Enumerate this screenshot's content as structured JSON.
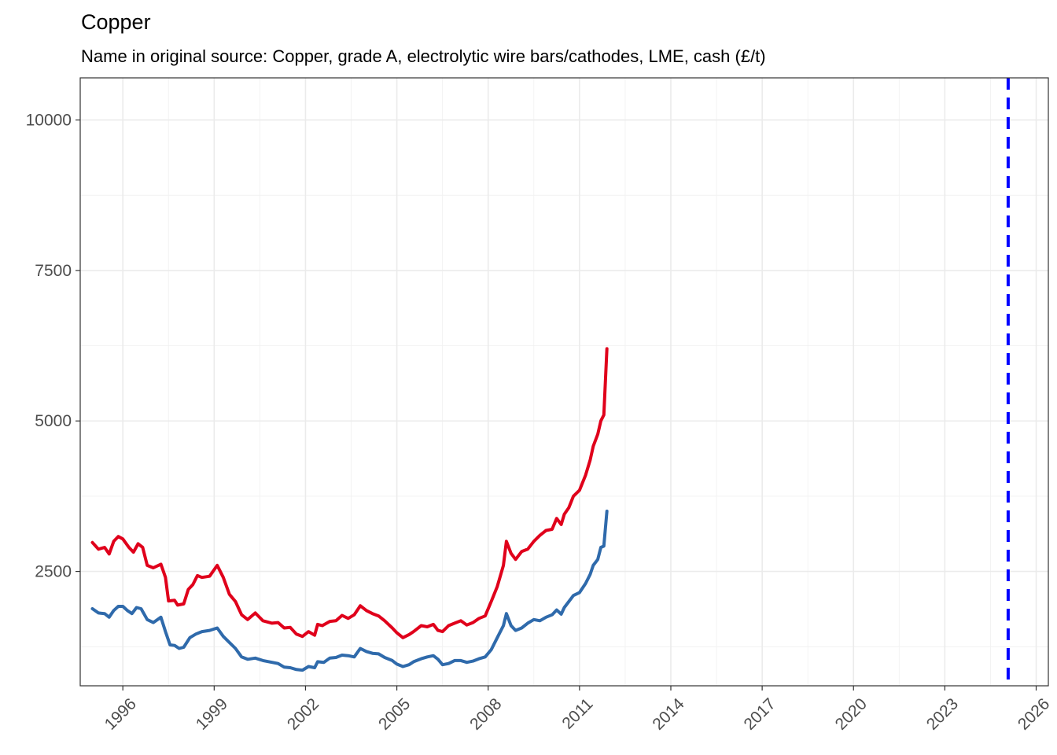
{
  "chart_data": {
    "type": "line",
    "title": "Copper",
    "subtitle": "Name in original source: Copper, grade A, electrolytic wire bars/cathodes, LME, cash (£/t)",
    "xlim": [
      1994.6,
      2026.4
    ],
    "ylim": [
      600,
      10700
    ],
    "x_ticks": [
      1996,
      1999,
      2002,
      2005,
      2008,
      2011,
      2014,
      2017,
      2020,
      2023,
      2026
    ],
    "y_ticks": [
      2500,
      5000,
      7500,
      10000
    ],
    "grid": true,
    "legend": "none",
    "reference_line": {
      "x": 2025.08,
      "style": "dashed",
      "color": "#0000ff"
    },
    "series": [
      {
        "color": "#e0001b",
        "points": [
          [
            1995.0,
            2980
          ],
          [
            1995.2,
            2870
          ],
          [
            1995.4,
            2900
          ],
          [
            1995.55,
            2790
          ],
          [
            1995.7,
            3000
          ],
          [
            1995.85,
            3080
          ],
          [
            1996.0,
            3040
          ],
          [
            1996.2,
            2900
          ],
          [
            1996.35,
            2820
          ],
          [
            1996.5,
            2960
          ],
          [
            1996.65,
            2900
          ],
          [
            1996.8,
            2600
          ],
          [
            1997.0,
            2560
          ],
          [
            1997.25,
            2620
          ],
          [
            1997.4,
            2400
          ],
          [
            1997.5,
            2010
          ],
          [
            1997.7,
            2020
          ],
          [
            1997.8,
            1940
          ],
          [
            1998.0,
            1960
          ],
          [
            1998.15,
            2200
          ],
          [
            1998.3,
            2280
          ],
          [
            1998.45,
            2430
          ],
          [
            1998.6,
            2400
          ],
          [
            1998.85,
            2420
          ],
          [
            1999.1,
            2600
          ],
          [
            1999.3,
            2400
          ],
          [
            1999.5,
            2120
          ],
          [
            1999.7,
            2000
          ],
          [
            1999.9,
            1780
          ],
          [
            2000.1,
            1700
          ],
          [
            2000.35,
            1810
          ],
          [
            2000.6,
            1680
          ],
          [
            2000.9,
            1640
          ],
          [
            2001.1,
            1650
          ],
          [
            2001.3,
            1560
          ],
          [
            2001.5,
            1570
          ],
          [
            2001.7,
            1460
          ],
          [
            2001.9,
            1420
          ],
          [
            2002.1,
            1500
          ],
          [
            2002.3,
            1440
          ],
          [
            2002.4,
            1620
          ],
          [
            2002.55,
            1600
          ],
          [
            2002.8,
            1670
          ],
          [
            2003.0,
            1680
          ],
          [
            2003.2,
            1770
          ],
          [
            2003.4,
            1720
          ],
          [
            2003.6,
            1780
          ],
          [
            2003.8,
            1930
          ],
          [
            2004.0,
            1850
          ],
          [
            2004.2,
            1800
          ],
          [
            2004.4,
            1760
          ],
          [
            2004.6,
            1680
          ],
          [
            2004.85,
            1560
          ],
          [
            2005.0,
            1480
          ],
          [
            2005.2,
            1400
          ],
          [
            2005.4,
            1450
          ],
          [
            2005.55,
            1500
          ],
          [
            2005.8,
            1600
          ],
          [
            2006.0,
            1580
          ],
          [
            2006.2,
            1620
          ],
          [
            2006.35,
            1520
          ],
          [
            2006.5,
            1500
          ],
          [
            2006.7,
            1600
          ],
          [
            2006.9,
            1640
          ],
          [
            2007.1,
            1680
          ],
          [
            2007.3,
            1610
          ],
          [
            2007.5,
            1650
          ],
          [
            2007.7,
            1720
          ],
          [
            2007.9,
            1760
          ],
          [
            2008.1,
            2000
          ],
          [
            2008.3,
            2250
          ],
          [
            2008.5,
            2600
          ],
          [
            2008.6,
            3000
          ],
          [
            2008.75,
            2800
          ],
          [
            2008.9,
            2700
          ],
          [
            2009.1,
            2830
          ],
          [
            2009.3,
            2870
          ],
          [
            2009.5,
            3000
          ],
          [
            2009.7,
            3100
          ],
          [
            2009.9,
            3180
          ],
          [
            2010.1,
            3200
          ],
          [
            2010.25,
            3380
          ],
          [
            2010.4,
            3280
          ],
          [
            2010.5,
            3450
          ],
          [
            2010.65,
            3560
          ],
          [
            2010.8,
            3750
          ],
          [
            2011.0,
            3850
          ],
          [
            2011.2,
            4100
          ],
          [
            2011.35,
            4350
          ],
          [
            2011.45,
            4580
          ],
          [
            2011.6,
            4780
          ],
          [
            2011.7,
            5000
          ],
          [
            2011.8,
            5100
          ],
          [
            2011.9,
            6200
          ]
        ]
      },
      {
        "color": "#2f6aab",
        "points": [
          [
            1995.0,
            1880
          ],
          [
            1995.2,
            1810
          ],
          [
            1995.4,
            1800
          ],
          [
            1995.55,
            1740
          ],
          [
            1995.7,
            1850
          ],
          [
            1995.85,
            1920
          ],
          [
            1996.0,
            1920
          ],
          [
            1996.15,
            1850
          ],
          [
            1996.3,
            1800
          ],
          [
            1996.45,
            1900
          ],
          [
            1996.6,
            1880
          ],
          [
            1996.8,
            1700
          ],
          [
            1997.0,
            1650
          ],
          [
            1997.25,
            1740
          ],
          [
            1997.4,
            1500
          ],
          [
            1997.55,
            1280
          ],
          [
            1997.7,
            1270
          ],
          [
            1997.85,
            1220
          ],
          [
            1998.0,
            1240
          ],
          [
            1998.2,
            1400
          ],
          [
            1998.4,
            1460
          ],
          [
            1998.6,
            1500
          ],
          [
            1998.85,
            1520
          ],
          [
            1999.1,
            1560
          ],
          [
            1999.3,
            1420
          ],
          [
            1999.5,
            1320
          ],
          [
            1999.7,
            1220
          ],
          [
            1999.9,
            1080
          ],
          [
            2000.1,
            1040
          ],
          [
            2000.35,
            1060
          ],
          [
            2000.6,
            1020
          ],
          [
            2000.9,
            990
          ],
          [
            2001.1,
            970
          ],
          [
            2001.3,
            910
          ],
          [
            2001.5,
            900
          ],
          [
            2001.7,
            870
          ],
          [
            2001.9,
            860
          ],
          [
            2002.1,
            920
          ],
          [
            2002.3,
            900
          ],
          [
            2002.4,
            1000
          ],
          [
            2002.6,
            990
          ],
          [
            2002.8,
            1060
          ],
          [
            2003.0,
            1070
          ],
          [
            2003.2,
            1110
          ],
          [
            2003.4,
            1100
          ],
          [
            2003.6,
            1080
          ],
          [
            2003.8,
            1220
          ],
          [
            2004.0,
            1170
          ],
          [
            2004.2,
            1140
          ],
          [
            2004.4,
            1130
          ],
          [
            2004.6,
            1070
          ],
          [
            2004.85,
            1020
          ],
          [
            2005.0,
            960
          ],
          [
            2005.2,
            920
          ],
          [
            2005.4,
            950
          ],
          [
            2005.55,
            1000
          ],
          [
            2005.8,
            1050
          ],
          [
            2006.0,
            1080
          ],
          [
            2006.2,
            1100
          ],
          [
            2006.35,
            1040
          ],
          [
            2006.5,
            950
          ],
          [
            2006.7,
            970
          ],
          [
            2006.9,
            1020
          ],
          [
            2007.1,
            1020
          ],
          [
            2007.3,
            990
          ],
          [
            2007.5,
            1010
          ],
          [
            2007.7,
            1050
          ],
          [
            2007.9,
            1080
          ],
          [
            2008.1,
            1200
          ],
          [
            2008.3,
            1400
          ],
          [
            2008.5,
            1600
          ],
          [
            2008.6,
            1800
          ],
          [
            2008.75,
            1600
          ],
          [
            2008.9,
            1520
          ],
          [
            2009.1,
            1560
          ],
          [
            2009.3,
            1640
          ],
          [
            2009.5,
            1700
          ],
          [
            2009.7,
            1680
          ],
          [
            2009.9,
            1740
          ],
          [
            2010.1,
            1780
          ],
          [
            2010.25,
            1860
          ],
          [
            2010.4,
            1790
          ],
          [
            2010.5,
            1900
          ],
          [
            2010.65,
            2000
          ],
          [
            2010.8,
            2100
          ],
          [
            2011.0,
            2150
          ],
          [
            2011.2,
            2300
          ],
          [
            2011.35,
            2450
          ],
          [
            2011.45,
            2600
          ],
          [
            2011.6,
            2700
          ],
          [
            2011.7,
            2900
          ],
          [
            2011.8,
            2920
          ],
          [
            2011.9,
            3500
          ]
        ]
      }
    ]
  }
}
